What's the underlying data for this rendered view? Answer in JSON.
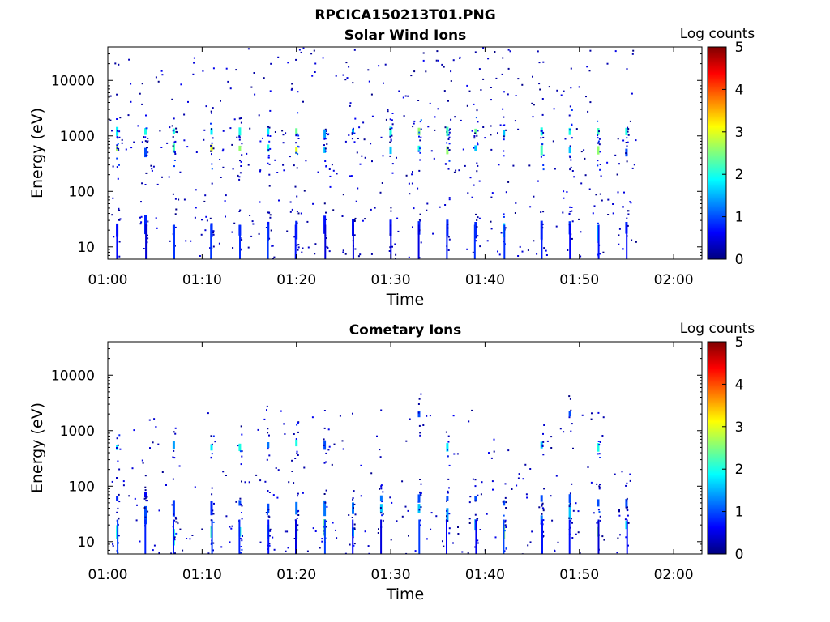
{
  "figure": {
    "title": "RPCICA150213T01.PNG"
  },
  "colorscale": {
    "colors": [
      "#00007f",
      "#0000ff",
      "#007fff",
      "#00ffff",
      "#7fff7f",
      "#ffff00",
      "#ff7f00",
      "#ff0000",
      "#7f0000"
    ]
  },
  "chart_data": [
    {
      "type": "heatmap",
      "title": "Solar Wind Ions",
      "xlabel": "Time",
      "ylabel": "Energy (eV)",
      "yscale": "log",
      "ylim": [
        6,
        40000
      ],
      "xlim": [
        "01:00",
        "02:03"
      ],
      "x_ticks": [
        "01:00",
        "01:10",
        "01:20",
        "01:30",
        "01:40",
        "01:50",
        "02:00"
      ],
      "y_ticks": [
        "10",
        "100",
        "1000",
        "10000"
      ],
      "colorbar_label": "Log counts",
      "colorbar_range": [
        0,
        5
      ],
      "colorbar_ticks": [
        "0",
        "1",
        "2",
        "3",
        "4",
        "5"
      ],
      "data_end_time": "01:56",
      "scan_period_min": 3.2,
      "bursts": [
        {
          "t": "01:01",
          "points": [
            [
              600,
              2.7
            ],
            [
              1200,
              1.8
            ],
            [
              20,
              0.7
            ]
          ]
        },
        {
          "t": "01:04",
          "points": [
            [
              1200,
              2.0
            ],
            [
              500,
              1.0
            ],
            [
              25,
              0.8
            ]
          ]
        },
        {
          "t": "01:07",
          "points": [
            [
              600,
              2.2
            ],
            [
              1200,
              2.0
            ],
            [
              20,
              0.8
            ]
          ]
        },
        {
          "t": "01:11",
          "points": [
            [
              600,
              3.0
            ],
            [
              1200,
              1.8
            ],
            [
              20,
              0.8
            ]
          ]
        },
        {
          "t": "01:14",
          "points": [
            [
              600,
              2.6
            ],
            [
              1200,
              2.0
            ],
            [
              20,
              0.8
            ]
          ]
        },
        {
          "t": "01:17",
          "points": [
            [
              600,
              2.0
            ],
            [
              1200,
              1.8
            ],
            [
              20,
              0.7
            ]
          ]
        },
        {
          "t": "01:20",
          "points": [
            [
              550,
              3.0
            ],
            [
              1200,
              2.4
            ],
            [
              20,
              0.8
            ]
          ]
        },
        {
          "t": "01:23",
          "points": [
            [
              550,
              1.6
            ],
            [
              1100,
              1.4
            ],
            [
              25,
              0.7
            ]
          ]
        },
        {
          "t": "01:26",
          "points": [
            [
              1200,
              1.5
            ],
            [
              22,
              0.7
            ]
          ]
        },
        {
          "t": "01:30",
          "points": [
            [
              1200,
              2.0
            ],
            [
              550,
              1.6
            ],
            [
              22,
              0.7
            ]
          ]
        },
        {
          "t": "01:33",
          "points": [
            [
              600,
              2.0
            ],
            [
              1200,
              2.6
            ],
            [
              22,
              0.8
            ]
          ]
        },
        {
          "t": "01:36",
          "points": [
            [
              550,
              2.6
            ],
            [
              1200,
              2.2
            ],
            [
              22,
              0.8
            ]
          ]
        },
        {
          "t": "01:39",
          "points": [
            [
              1200,
              2.4
            ],
            [
              600,
              1.6
            ],
            [
              20,
              0.8
            ]
          ]
        },
        {
          "t": "01:42",
          "points": [
            [
              1100,
              1.6
            ],
            [
              20,
              1.8
            ]
          ]
        },
        {
          "t": "01:46",
          "points": [
            [
              1200,
              2.0
            ],
            [
              550,
              2.2
            ],
            [
              20,
              0.8
            ]
          ]
        },
        {
          "t": "01:49",
          "points": [
            [
              1200,
              2.0
            ],
            [
              550,
              1.6
            ],
            [
              22,
              0.9
            ]
          ]
        },
        {
          "t": "01:52",
          "points": [
            [
              1200,
              2.2
            ],
            [
              550,
              2.6
            ],
            [
              18,
              1.8
            ]
          ]
        },
        {
          "t": "01:55",
          "points": [
            [
              1200,
              2.0
            ],
            [
              500,
              1.0
            ],
            [
              22,
              0.8
            ]
          ]
        }
      ]
    },
    {
      "type": "heatmap",
      "title": "Cometary Ions",
      "xlabel": "Time",
      "ylabel": "Energy (eV)",
      "yscale": "log",
      "ylim": [
        6,
        40000
      ],
      "xlim": [
        "01:00",
        "02:03"
      ],
      "x_ticks": [
        "01:00",
        "01:10",
        "01:20",
        "01:30",
        "01:40",
        "01:50",
        "02:00"
      ],
      "y_ticks": [
        "10",
        "100",
        "1000",
        "10000"
      ],
      "colorbar_label": "Log counts",
      "colorbar_range": [
        0,
        5
      ],
      "colorbar_ticks": [
        "0",
        "1",
        "2",
        "3",
        "4",
        "5"
      ],
      "data_end_time": "01:56",
      "scan_period_min": 3.2,
      "bursts": [
        {
          "t": "01:01",
          "points": [
            [
              500,
              1.8
            ],
            [
              15,
              2.0
            ],
            [
              60,
              0.8
            ]
          ]
        },
        {
          "t": "01:04",
          "points": [
            [
              30,
              1.0
            ],
            [
              70,
              0.6
            ]
          ]
        },
        {
          "t": "01:07",
          "points": [
            [
              550,
              1.4
            ],
            [
              12,
              2.0
            ],
            [
              40,
              0.9
            ]
          ]
        },
        {
          "t": "01:11",
          "points": [
            [
              500,
              1.8
            ],
            [
              15,
              2.2
            ],
            [
              40,
              0.8
            ]
          ]
        },
        {
          "t": "01:14",
          "points": [
            [
              500,
              2.0
            ],
            [
              15,
              2.0
            ],
            [
              50,
              1.0
            ]
          ]
        },
        {
          "t": "01:17",
          "points": [
            [
              550,
              1.2
            ],
            [
              15,
              2.0
            ],
            [
              40,
              1.0
            ]
          ]
        },
        {
          "t": "01:20",
          "points": [
            [
              600,
              2.0
            ],
            [
              15,
              2.2
            ],
            [
              40,
              1.2
            ]
          ]
        },
        {
          "t": "01:23",
          "points": [
            [
              550,
              1.0
            ],
            [
              18,
              2.4
            ],
            [
              40,
              1.2
            ]
          ]
        },
        {
          "t": "01:26",
          "points": [
            [
              15,
              1.6
            ],
            [
              40,
              1.2
            ]
          ]
        },
        {
          "t": "01:29",
          "points": [
            [
              40,
              1.6
            ],
            [
              60,
              1.2
            ]
          ]
        },
        {
          "t": "01:33",
          "points": [
            [
              2000,
              1.0
            ],
            [
              40,
              1.6
            ],
            [
              60,
              1.0
            ]
          ]
        },
        {
          "t": "01:36",
          "points": [
            [
              500,
              1.8
            ],
            [
              30,
              1.4
            ],
            [
              60,
              1.0
            ]
          ]
        },
        {
          "t": "01:39",
          "points": [
            [
              20,
              1.4
            ],
            [
              60,
              1.0
            ]
          ]
        },
        {
          "t": "01:42",
          "points": [
            [
              15,
              2.6
            ],
            [
              50,
              1.0
            ]
          ]
        },
        {
          "t": "01:46",
          "points": [
            [
              550,
              1.6
            ],
            [
              25,
              1.2
            ],
            [
              60,
              1.0
            ]
          ]
        },
        {
          "t": "01:49",
          "points": [
            [
              2000,
              1.0
            ],
            [
              35,
              1.6
            ],
            [
              60,
              1.0
            ]
          ]
        },
        {
          "t": "01:52",
          "points": [
            [
              500,
              2.0
            ],
            [
              15,
              2.6
            ],
            [
              50,
              1.0
            ]
          ]
        },
        {
          "t": "01:55",
          "points": [
            [
              20,
              1.8
            ],
            [
              50,
              1.0
            ]
          ]
        }
      ]
    }
  ]
}
